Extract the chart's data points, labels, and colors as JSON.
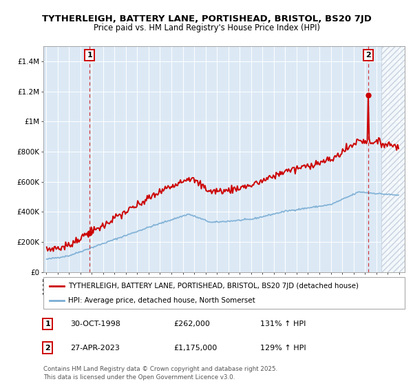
{
  "title": "TYTHERLEIGH, BATTERY LANE, PORTISHEAD, BRISTOL, BS20 7JD",
  "subtitle": "Price paid vs. HM Land Registry's House Price Index (HPI)",
  "legend_line1": "TYTHERLEIGH, BATTERY LANE, PORTISHEAD, BRISTOL, BS20 7JD (detached house)",
  "legend_line2": "HPI: Average price, detached house, North Somerset",
  "annotation1_date": "30-OCT-1998",
  "annotation1_price": "£262,000",
  "annotation1_hpi": "131% ↑ HPI",
  "annotation2_date": "27-APR-2023",
  "annotation2_price": "£1,175,000",
  "annotation2_hpi": "129% ↑ HPI",
  "footnote": "Contains HM Land Registry data © Crown copyright and database right 2025.\nThis data is licensed under the Open Government Licence v3.0.",
  "bg_color": "#dce9f5",
  "red_line_color": "#cc0000",
  "blue_line_color": "#7aadd4",
  "dashed_line_color": "#cc0000",
  "ylim": [
    0,
    1500000
  ],
  "yticks": [
    0,
    200000,
    400000,
    600000,
    800000,
    1000000,
    1200000,
    1400000
  ],
  "xlim_start": 1994.75,
  "xlim_end": 2026.5,
  "marker1_x": 1998.83,
  "marker1_y": 262000,
  "marker2_x": 2023.32,
  "marker2_y": 1175000,
  "hatch_start": 2024.42
}
